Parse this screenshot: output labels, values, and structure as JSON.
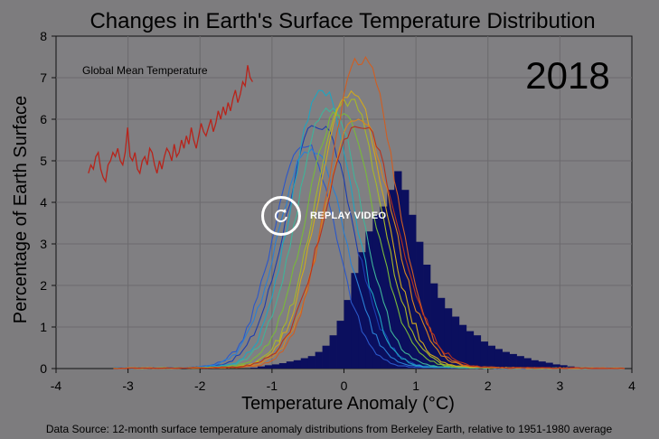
{
  "chart_data": {
    "type": "area",
    "title": "Changes in Earth's Surface Temperature Distribution",
    "xlabel": "Temperature Anomaly (°C)",
    "ylabel": "Percentage of Earth Surface",
    "year_label": "2018",
    "source": "Data Source: 12-month surface temperature anomaly distributions from Berkeley Earth, relative to 1951-1980 average",
    "xlim": [
      -4,
      4
    ],
    "ylim": [
      0,
      8
    ],
    "xticks": [
      "-4",
      "-3",
      "-2",
      "-1",
      "0",
      "1",
      "2",
      "3",
      "4"
    ],
    "yticks": [
      "0",
      "1",
      "2",
      "3",
      "4",
      "5",
      "6",
      "7",
      "8"
    ],
    "grid": true,
    "histogram_2018": {
      "x": [
        -1.25,
        -1.15,
        -1.05,
        -0.95,
        -0.85,
        -0.75,
        -0.65,
        -0.55,
        -0.45,
        -0.35,
        -0.25,
        -0.15,
        -0.05,
        0.05,
        0.15,
        0.25,
        0.35,
        0.45,
        0.55,
        0.65,
        0.75,
        0.85,
        0.95,
        1.05,
        1.15,
        1.25,
        1.35,
        1.45,
        1.55,
        1.65,
        1.75,
        1.85,
        1.95,
        2.05,
        2.15,
        2.25,
        2.35,
        2.45,
        2.55,
        2.65,
        2.75,
        2.85,
        2.95,
        3.05,
        3.15,
        3.25
      ],
      "y": [
        0.02,
        0.05,
        0.08,
        0.1,
        0.13,
        0.17,
        0.2,
        0.25,
        0.3,
        0.4,
        0.55,
        0.8,
        1.15,
        1.65,
        2.3,
        2.8,
        3.3,
        3.7,
        3.9,
        4.3,
        4.75,
        4.3,
        3.7,
        3.05,
        2.5,
        2.05,
        1.7,
        1.45,
        1.25,
        1.05,
        0.9,
        0.8,
        0.65,
        0.55,
        0.47,
        0.4,
        0.35,
        0.3,
        0.25,
        0.2,
        0.17,
        0.14,
        0.1,
        0.08,
        0.05,
        0.03
      ]
    },
    "lines": [
      {
        "color": "#1b3db0",
        "peak_x": -0.35,
        "peak_y": 5.9,
        "width": 0.45
      },
      {
        "color": "#2b57c9",
        "peak_x": -0.55,
        "peak_y": 5.4,
        "width": 0.42
      },
      {
        "color": "#2a7fd4",
        "peak_x": -0.45,
        "peak_y": 5.3,
        "width": 0.45
      },
      {
        "color": "#1fa5c0",
        "peak_x": -0.3,
        "peak_y": 6.7,
        "width": 0.42
      },
      {
        "color": "#3fb39a",
        "peak_x": -0.2,
        "peak_y": 6.3,
        "width": 0.44
      },
      {
        "color": "#79b83b",
        "peak_x": -0.05,
        "peak_y": 6.2,
        "width": 0.46
      },
      {
        "color": "#a7b729",
        "peak_x": 0.05,
        "peak_y": 6.5,
        "width": 0.45
      },
      {
        "color": "#d0a81e",
        "peak_x": 0.1,
        "peak_y": 6.7,
        "width": 0.45
      },
      {
        "color": "#d9861f",
        "peak_x": 0.2,
        "peak_y": 6.0,
        "width": 0.47
      },
      {
        "color": "#cf5e22",
        "peak_x": 0.25,
        "peak_y": 7.5,
        "width": 0.45
      },
      {
        "color": "#b8321d",
        "peak_x": 0.22,
        "peak_y": 5.9,
        "width": 0.5
      }
    ],
    "inset": {
      "label": "Global Mean Temperature",
      "color": "#b8231a",
      "values": [
        4.7,
        4.9,
        4.8,
        5.1,
        5.2,
        4.8,
        4.6,
        4.5,
        4.9,
        5.0,
        5.2,
        5.1,
        5.3,
        5.0,
        4.9,
        5.2,
        5.8,
        5.1,
        5.0,
        5.2,
        4.8,
        4.7,
        5.0,
        5.1,
        4.9,
        5.3,
        5.2,
        4.9,
        4.7,
        5.0,
        4.8,
        5.1,
        5.3,
        5.2,
        5.0,
        5.4,
        5.1,
        5.2,
        5.5,
        5.3,
        5.6,
        5.4,
        5.8,
        5.5,
        5.3,
        5.6,
        5.9,
        5.7,
        5.6,
        5.8,
        6.0,
        5.7,
        5.9,
        6.2,
        6.0,
        6.3,
        6.1,
        6.4,
        6.2,
        6.5,
        6.7,
        6.4,
        6.6,
        6.9,
        6.8,
        7.3,
        7.0,
        6.9
      ]
    }
  },
  "overlay": {
    "replay_label": "REPLAY VIDEO"
  }
}
